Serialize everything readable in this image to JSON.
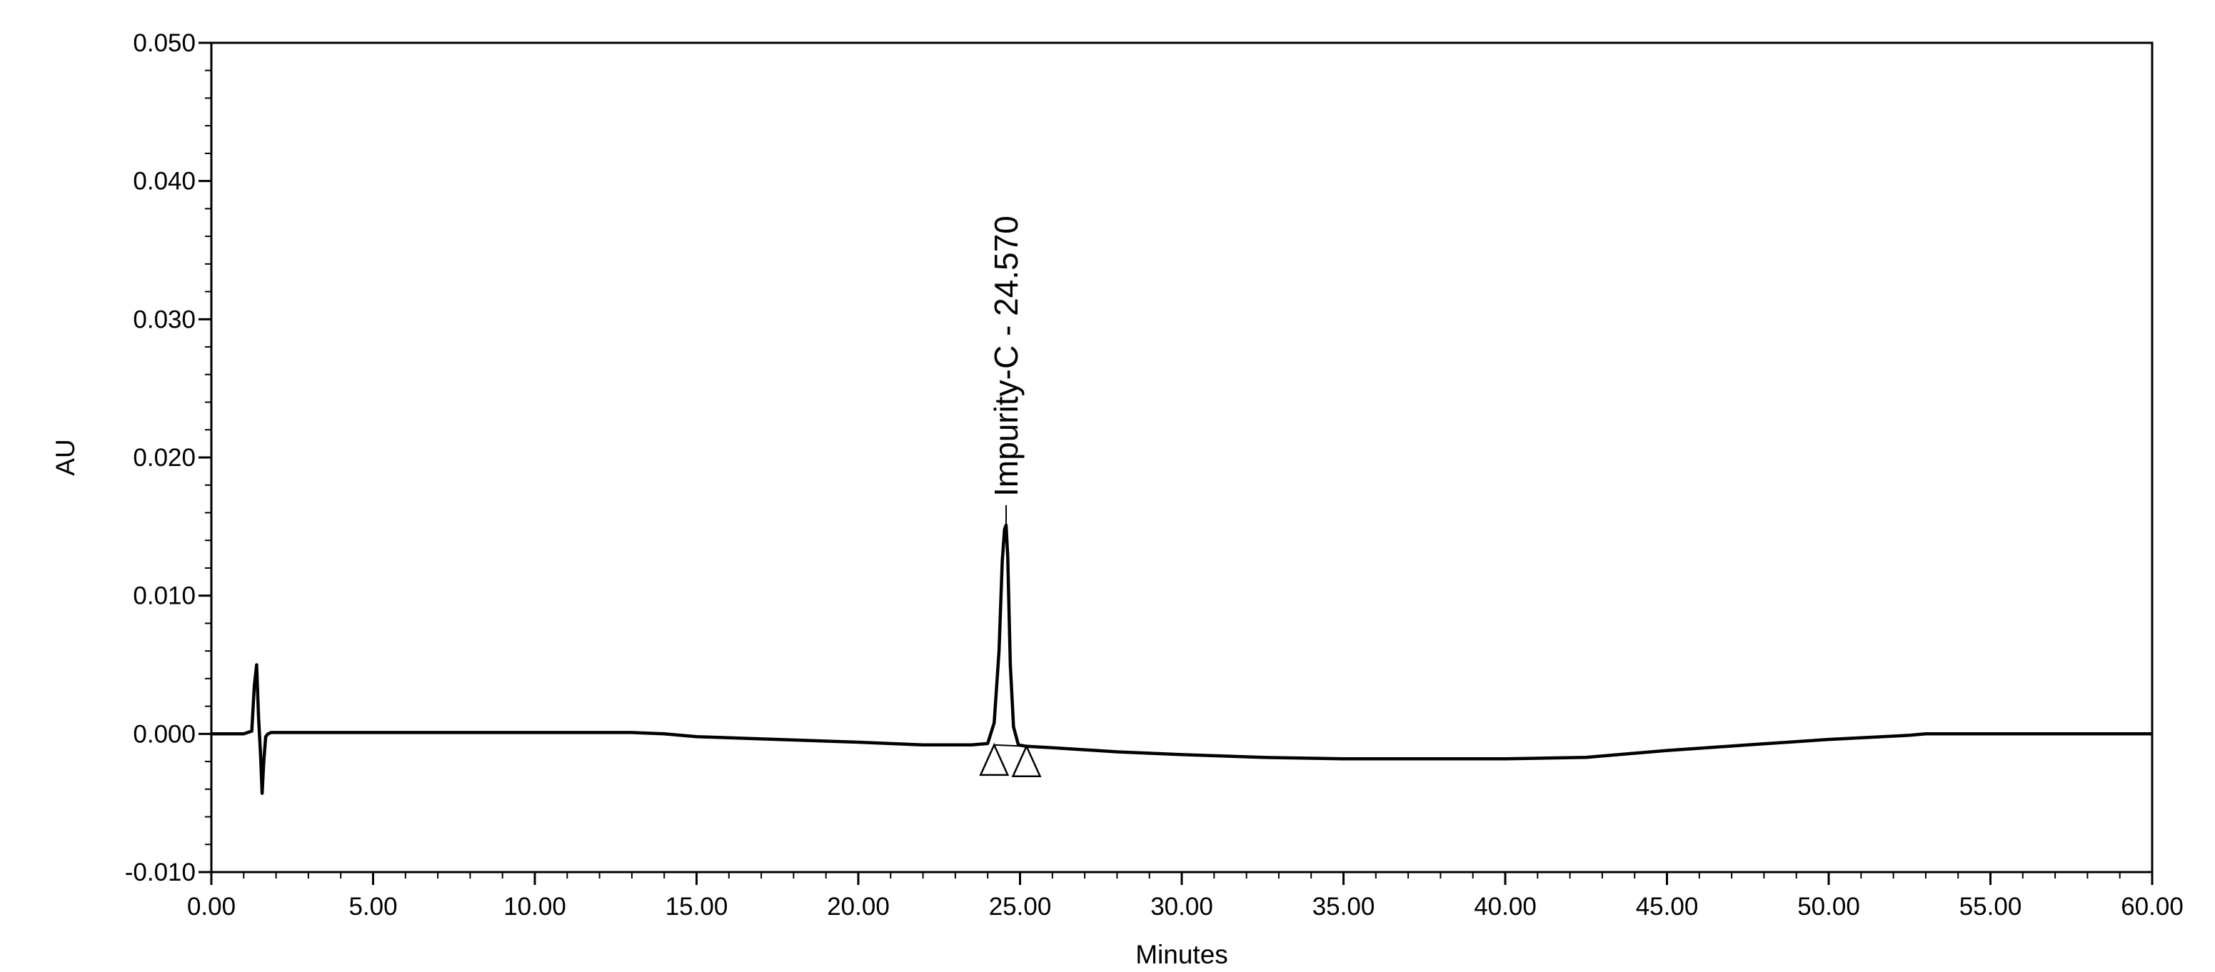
{
  "chart_data": {
    "type": "line",
    "title": "",
    "xlabel": "Minutes",
    "ylabel": "AU",
    "xlim": [
      0,
      60
    ],
    "ylim": [
      -0.01,
      0.05
    ],
    "x_ticks": [
      0,
      5,
      10,
      15,
      20,
      25,
      30,
      35,
      40,
      45,
      50,
      55,
      60
    ],
    "x_tick_labels": [
      "0.00",
      "5.00",
      "10.00",
      "15.00",
      "20.00",
      "25.00",
      "30.00",
      "35.00",
      "40.00",
      "45.00",
      "50.00",
      "55.00",
      "60.00"
    ],
    "y_ticks": [
      -0.01,
      0,
      0.01,
      0.02,
      0.03,
      0.04,
      0.05
    ],
    "y_tick_labels": [
      "-0.010",
      "0.000",
      "0.010",
      "0.020",
      "0.030",
      "0.040",
      "0.050"
    ],
    "grid": false,
    "legend": "none",
    "line_color": "#000000",
    "series": [
      {
        "x": [
          0,
          1.0,
          1.25,
          1.33,
          1.4,
          1.46,
          1.52,
          1.57,
          1.62,
          1.68,
          1.75,
          1.85,
          2.0,
          5.0,
          10.0,
          13.0,
          14.0,
          15.0,
          17.5,
          20.0,
          22.0,
          23.5,
          24.0,
          24.2,
          24.35,
          24.45,
          24.52,
          24.57,
          24.62,
          24.7,
          24.8,
          24.95,
          25.2,
          26.0,
          28.0,
          30.0,
          32.5,
          35.0,
          38.0,
          40.0,
          42.5,
          45.0,
          47.5,
          50.0,
          52.5,
          53.0,
          55.0,
          60.0
        ],
        "y": [
          0.0,
          0.0,
          0.0002,
          0.0035,
          0.005,
          0.0012,
          -0.0015,
          -0.0043,
          -0.002,
          -0.0002,
          0.0,
          0.0001,
          0.0001,
          0.0001,
          0.0001,
          0.0001,
          0.0,
          -0.0002,
          -0.0004,
          -0.0006,
          -0.0008,
          -0.0008,
          -0.0007,
          0.0008,
          0.006,
          0.0125,
          0.0148,
          0.0151,
          0.0128,
          0.005,
          0.0005,
          -0.0008,
          -0.0009,
          -0.001,
          -0.0013,
          -0.0015,
          -0.0017,
          -0.0018,
          -0.0018,
          -0.0018,
          -0.0017,
          -0.0012,
          -0.0008,
          -0.0004,
          -0.0001,
          0.0,
          0.0,
          0.0
        ]
      }
    ],
    "peaks": [
      {
        "label": "Impurity-C - 24.570",
        "retention_time": 24.57,
        "height": 0.0151,
        "baseline_start": 24.2,
        "baseline_end": 25.2,
        "baseline_start_y": -0.0008,
        "baseline_end_y": -0.0009
      }
    ]
  }
}
